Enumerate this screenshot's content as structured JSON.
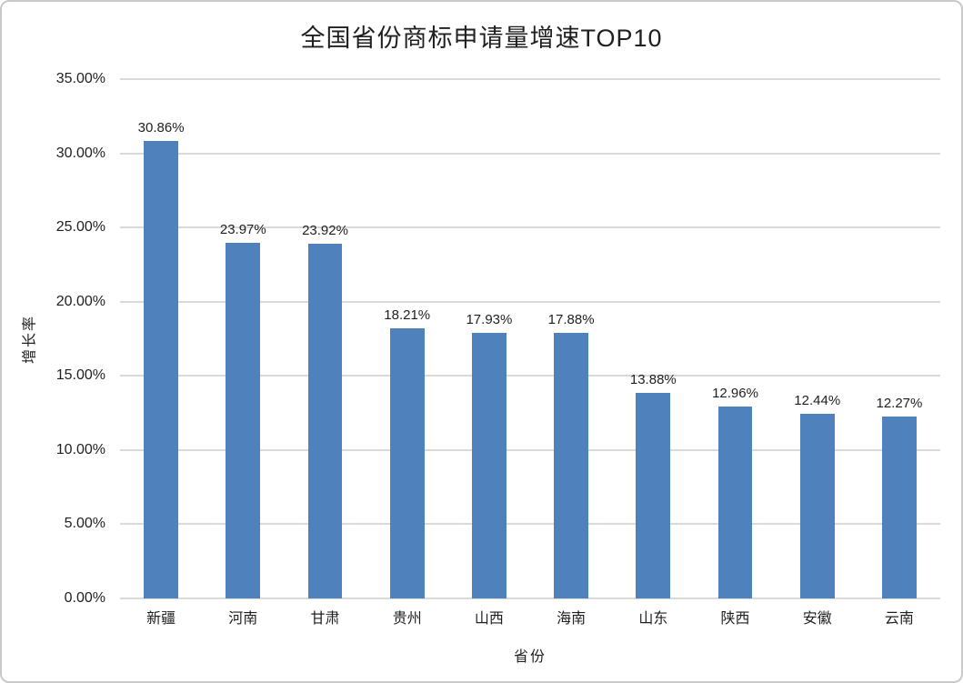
{
  "chart_data": {
    "type": "bar",
    "title": "全国省份商标申请量增速TOP10",
    "xlabel": "省份",
    "ylabel": "增长率",
    "categories": [
      "新疆",
      "河南",
      "甘肃",
      "贵州",
      "山西",
      "海南",
      "山东",
      "陕西",
      "安徽",
      "云南"
    ],
    "values": [
      30.86,
      23.97,
      23.92,
      18.21,
      17.93,
      17.88,
      13.88,
      12.96,
      12.44,
      12.27
    ],
    "data_labels": [
      "30.86%",
      "23.97%",
      "23.92%",
      "18.21%",
      "17.93%",
      "17.88%",
      "13.88%",
      "12.96%",
      "12.44%",
      "12.27%"
    ],
    "y_ticks": [
      "35.00%",
      "30.00%",
      "25.00%",
      "20.00%",
      "15.00%",
      "10.00%",
      "5.00%",
      "0.00%"
    ],
    "ylim": [
      0,
      35
    ],
    "grid": true,
    "legend_position": "none",
    "bar_color": "#4F81BD",
    "gridline_color": "#D9D9D9"
  }
}
